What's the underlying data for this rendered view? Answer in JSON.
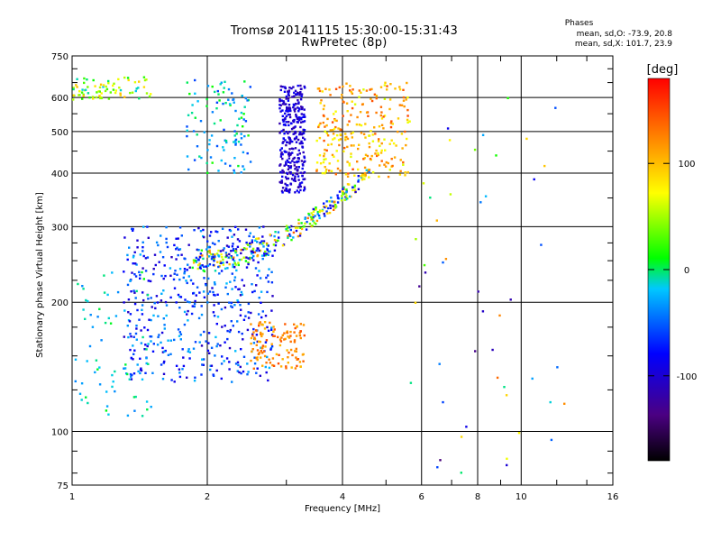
{
  "chart_data": {
    "type": "scatter",
    "title": "Tromsø 20141115 15:30:00-15:31:43",
    "subtitle": "RwPretec (8p)",
    "xlabel": "Frequency [MHz]",
    "ylabel": "Stationary phase Virtual Height [km]",
    "x_scale": "log",
    "y_scale": "log",
    "xlim": [
      1,
      16
    ],
    "ylim": [
      75,
      750
    ],
    "x_ticks": [
      1,
      2,
      4,
      6,
      8,
      10,
      16
    ],
    "y_ticks": [
      75,
      100,
      200,
      300,
      400,
      500,
      600,
      750
    ],
    "grid": true,
    "stats": {
      "heading": "Phases",
      "line_o": "mean, sd,O: -73.9, 20.8",
      "line_x": "mean, sd,X: 101.7, 23.9"
    },
    "colorbar": {
      "label": "[deg]",
      "range": [
        -180,
        180
      ],
      "ticks": [
        100,
        0,
        -100
      ]
    },
    "series": [
      {
        "name": "upper-left cluster",
        "x": [
          1.0,
          1.5
        ],
        "y": [
          590,
          670
        ],
        "phase": [
          -20,
          110
        ],
        "n": 80
      },
      {
        "name": "upper mid cluster",
        "x": [
          1.8,
          2.5
        ],
        "y": [
          400,
          660
        ],
        "phase": [
          -60,
          20
        ],
        "n": 110
      },
      {
        "name": "F2 O-trace column",
        "x": [
          2.9,
          3.3
        ],
        "y": [
          360,
          640
        ],
        "phase": [
          -120,
          -80
        ],
        "n": 320
      },
      {
        "name": "F2 X-trace columns",
        "x": [
          3.5,
          5.6
        ],
        "y": [
          390,
          650
        ],
        "phase": [
          60,
          150
        ],
        "n": 260
      },
      {
        "name": "F-layer curve",
        "x": [
          1.85,
          4.6
        ],
        "y": [
          250,
          400
        ],
        "phase": [
          -110,
          140
        ],
        "n": 300
      },
      {
        "name": "F1 band",
        "x": [
          1.3,
          2.8
        ],
        "y": [
          130,
          300
        ],
        "phase": [
          -110,
          -20
        ],
        "n": 500
      },
      {
        "name": "F1 X-trace",
        "x": [
          2.5,
          3.3
        ],
        "y": [
          140,
          180
        ],
        "phase": [
          100,
          150
        ],
        "n": 120
      },
      {
        "name": "low-frequency traces",
        "x": [
          1.0,
          1.5
        ],
        "y": [
          108,
          235
        ],
        "phase": [
          -40,
          10
        ],
        "n": 70
      },
      {
        "name": "scattered high-frequency",
        "x": [
          5.5,
          13
        ],
        "y": [
          80,
          640
        ],
        "phase": [
          -140,
          140
        ],
        "n": 50
      }
    ]
  }
}
